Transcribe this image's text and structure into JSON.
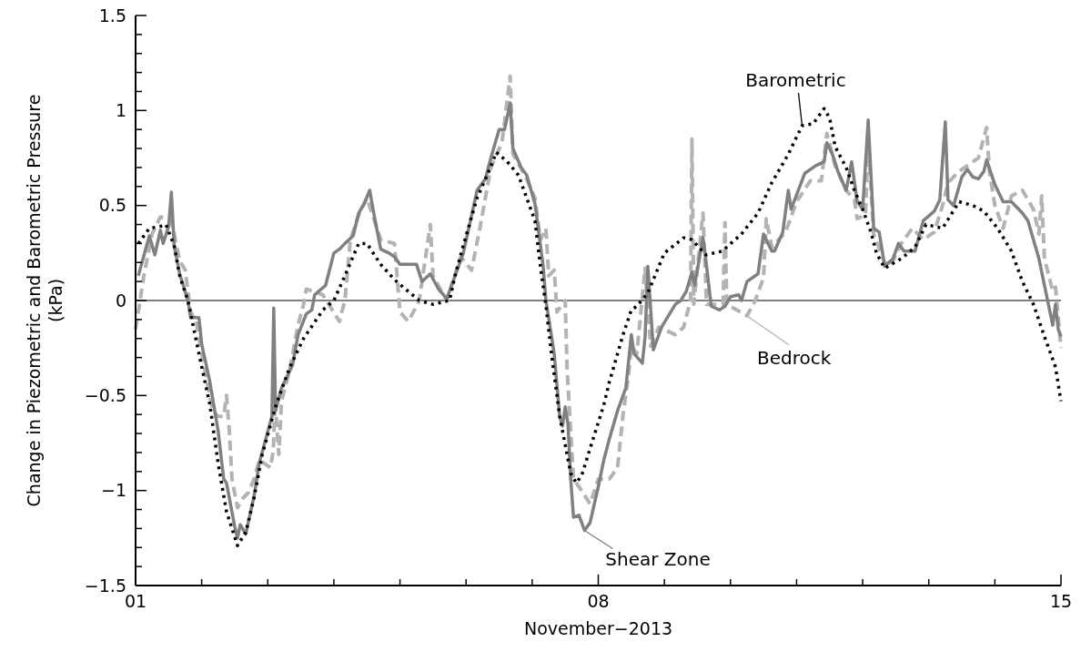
{
  "chart_data": {
    "type": "line",
    "xlabel": "November−2013",
    "ylabel": "Change in Piezometric and Barometric Pressure (kPa)",
    "xlim": [
      "2013-11-01",
      "2013-11-15"
    ],
    "xticks": [
      {
        "value": "2013-11-01",
        "label": "01"
      },
      {
        "value": "2013-11-02",
        "label": null
      },
      {
        "value": "2013-11-03",
        "label": null
      },
      {
        "value": "2013-11-04",
        "label": null
      },
      {
        "value": "2013-11-05",
        "label": null
      },
      {
        "value": "2013-11-06",
        "label": null
      },
      {
        "value": "2013-11-07",
        "label": null
      },
      {
        "value": "2013-11-08",
        "label": "08"
      },
      {
        "value": "2013-11-09",
        "label": null
      },
      {
        "value": "2013-11-10",
        "label": null
      },
      {
        "value": "2013-11-11",
        "label": null
      },
      {
        "value": "2013-11-12",
        "label": null
      },
      {
        "value": "2013-11-13",
        "label": null
      },
      {
        "value": "2013-11-14",
        "label": null
      },
      {
        "value": "2013-11-15",
        "label": "15"
      }
    ],
    "ylim": [
      -1.5,
      1.5
    ],
    "yticks": [
      {
        "value": -1.5,
        "label": "−1.5"
      },
      {
        "value": -1.4,
        "label": null
      },
      {
        "value": -1.3,
        "label": null
      },
      {
        "value": -1.2,
        "label": null
      },
      {
        "value": -1.1,
        "label": null
      },
      {
        "value": -1,
        "label": "−1"
      },
      {
        "value": -0.9,
        "label": null
      },
      {
        "value": -0.8,
        "label": null
      },
      {
        "value": -0.7,
        "label": null
      },
      {
        "value": -0.6,
        "label": null
      },
      {
        "value": -0.5,
        "label": "−0.5"
      },
      {
        "value": -0.4,
        "label": null
      },
      {
        "value": -0.3,
        "label": null
      },
      {
        "value": -0.2,
        "label": null
      },
      {
        "value": -0.1,
        "label": null
      },
      0,
      {
        "value": 0.1,
        "label": null
      },
      {
        "value": 0.2,
        "label": null
      },
      {
        "value": 0.3,
        "label": null
      },
      {
        "value": 0.4,
        "label": null
      },
      0.5,
      {
        "value": 0.6,
        "label": null
      },
      {
        "value": 0.7,
        "label": null
      },
      {
        "value": 0.8,
        "label": null
      },
      {
        "value": 0.9,
        "label": null
      },
      1,
      {
        "value": 1.1,
        "label": null
      },
      {
        "value": 1.2,
        "label": null
      },
      {
        "value": 1.3,
        "label": null
      },
      {
        "value": 1.4,
        "label": null
      },
      1.5
    ],
    "ref_lines": [
      {
        "axis": "y",
        "value": 0,
        "color": "#000000"
      }
    ],
    "legend": "bottom",
    "series": [
      {
        "name": "Bedrock",
        "color": "#b3b3b3",
        "line_style": "dashed",
        "x": [
          "2013-11-01T00:00",
          "2013-11-01T01:00",
          "2013-11-01T03:00",
          "2013-11-01T06:00",
          "2013-11-01T09:00",
          "2013-11-01T13:00",
          "2013-11-01T16:00",
          "2013-11-01T18:00",
          "2013-11-01T20:00",
          "2013-11-01T22:00",
          "2013-11-02T00:00",
          "2013-11-02T04:00",
          "2013-11-02T06:00",
          "2013-11-02T08:00",
          "2013-11-02T09:00",
          "2013-11-02T10:00",
          "2013-11-02T11:00",
          "2013-11-02T13:00",
          "2013-11-02T15:00",
          "2013-11-02T17:00",
          "2013-11-02T19:00",
          "2013-11-02T21:00",
          "2013-11-03T01:00",
          "2013-11-03T02:00",
          "2013-11-03T02:40",
          "2013-11-03T04:00",
          "2013-11-03T05:00",
          "2013-11-03T08:00",
          "2013-11-03T11:00",
          "2013-11-03T13:00",
          "2013-11-03T14:00",
          "2013-11-03T20:00",
          "2013-11-04T02:00",
          "2013-11-04T04:00",
          "2013-11-04T06:00",
          "2013-11-04T09:00",
          "2013-11-04T12:00",
          "2013-11-04T17:00",
          "2013-11-04T22:00",
          "2013-11-05T00:00",
          "2013-11-05T03:00",
          "2013-11-05T06:00",
          "2013-11-05T07:00",
          "2013-11-05T11:00",
          "2013-11-05T12:00",
          "2013-11-05T17:00",
          "2013-11-05T22:00",
          "2013-11-06T02:00",
          "2013-11-06T05:00",
          "2013-11-06T09:00",
          "2013-11-06T13:00",
          "2013-11-06T16:00",
          "2013-11-06T17:00",
          "2013-11-06T21:00",
          "2013-11-07T01:00",
          "2013-11-07T03:00",
          "2013-11-07T05:00",
          "2013-11-07T06:00",
          "2013-11-07T08:00",
          "2013-11-07T09:00",
          "2013-11-07T12:00",
          "2013-11-07T12:40",
          "2013-11-07T13:40",
          "2013-11-07T15:00",
          "2013-11-07T17:00",
          "2013-11-07T21:00",
          "2013-11-08T00:00",
          "2013-11-08T04:00",
          "2013-11-08T07:00",
          "2013-11-08T09:00",
          "2013-11-08T11:00",
          "2013-11-08T12:00",
          "2013-11-08T14:00",
          "2013-11-08T17:00",
          "2013-11-08T19:00",
          "2013-11-08T22:00",
          "2013-11-09T04:00",
          "2013-11-09T07:00",
          "2013-11-09T09:30",
          "2013-11-09T10:00",
          "2013-11-09T10:40",
          "2013-11-09T14:00",
          "2013-11-09T15:20",
          "2013-11-09T21:20",
          "2013-11-09T22:00",
          "2013-11-09T22:40",
          "2013-11-10T06:00",
          "2013-11-10T09:00",
          "2013-11-10T12:00",
          "2013-11-10T13:00",
          "2013-11-10T15:00",
          "2013-11-10T20:00",
          "2013-11-11T00:00",
          "2013-11-11T05:00",
          "2013-11-11T09:00",
          "2013-11-11T11:00",
          "2013-11-11T14:00",
          "2013-11-11T18:00",
          "2013-11-11T21:00",
          "2013-11-11T22:00",
          "2013-11-12T01:00",
          "2013-11-12T02:00",
          "2013-11-12T04:00",
          "2013-11-12T08:00",
          "2013-11-12T10:00",
          "2013-11-12T14:00",
          "2013-11-12T18:00",
          "2013-11-12T22:00",
          "2013-11-13T02:00",
          "2013-11-13T05:00",
          "2013-11-13T07:00",
          "2013-11-13T11:00",
          "2013-11-13T15:00",
          "2013-11-13T18:00",
          "2013-11-13T21:00",
          "2013-11-13T22:00",
          "2013-11-14T00:00",
          "2013-11-14T03:00",
          "2013-11-14T06:00",
          "2013-11-14T10:00",
          "2013-11-14T14:00",
          "2013-11-14T16:00",
          "2013-11-14T17:00",
          "2013-11-14T18:00",
          "2013-11-14T21:00",
          "2013-11-14T22:00",
          "2013-11-15T00:00"
        ],
        "values": [
          -0.15,
          -0.06,
          0.13,
          0.35,
          0.44,
          0.42,
          0.21,
          0.16,
          -0.06,
          -0.11,
          -0.28,
          -0.58,
          -0.61,
          -0.61,
          -0.5,
          -0.68,
          -0.94,
          -1.09,
          -1.04,
          -1.01,
          -0.94,
          -0.84,
          -0.88,
          -0.79,
          -0.53,
          -0.81,
          -0.53,
          -0.36,
          -0.13,
          -0.02,
          0.06,
          0.03,
          -0.11,
          0,
          0.32,
          0.45,
          0.54,
          0.32,
          0.3,
          -0.06,
          -0.11,
          -0.03,
          0,
          0.4,
          0.13,
          0,
          0.23,
          0.16,
          0.38,
          0.7,
          0.83,
          1.18,
          0.77,
          0.67,
          0.54,
          0.32,
          0.38,
          0.13,
          0.16,
          -0.06,
          0,
          -0.36,
          -0.61,
          -0.94,
          -0.98,
          -1.07,
          -0.94,
          -0.94,
          -0.88,
          -0.6,
          -0.39,
          -0.24,
          -0.28,
          0.17,
          -0.24,
          -0.14,
          -0.18,
          -0.14,
          0,
          0.85,
          -0.02,
          0.46,
          -0.02,
          -0.02,
          0.41,
          -0.02,
          -0.08,
          0,
          0.12,
          0.43,
          0.28,
          0.36,
          0.52,
          0.63,
          0.63,
          0.88,
          0.71,
          0.58,
          0.53,
          0.43,
          0.45,
          0.83,
          0.35,
          0.2,
          0.18,
          0.3,
          0.38,
          0.32,
          0.36,
          0.5,
          0.62,
          0.68,
          0.72,
          0.75,
          0.91,
          0.68,
          0.5,
          0.38,
          0.55,
          0.58,
          0.48,
          0.35,
          0.55,
          0.22,
          0.05,
          0.07,
          -0.25
        ]
      },
      {
        "name": "Shear Zone",
        "color": "#808080",
        "line_style": "solid",
        "x": [
          "2013-11-01T01:00",
          "2013-11-01T05:00",
          "2013-11-01T07:00",
          "2013-11-01T09:00",
          "2013-11-01T10:00",
          "2013-11-01T12:00",
          "2013-11-01T13:00",
          "2013-11-01T14:00",
          "2013-11-01T16:00",
          "2013-11-01T19:00",
          "2013-11-01T20:00",
          "2013-11-01T23:00",
          "2013-11-02T00:00",
          "2013-11-02T03:00",
          "2013-11-02T06:00",
          "2013-11-02T08:00",
          "2013-11-02T09:00",
          "2013-11-02T12:00",
          "2013-11-02T13:00",
          "2013-11-02T14:00",
          "2013-11-02T16:00",
          "2013-11-02T19:00",
          "2013-11-02T21:00",
          "2013-11-03T00:00",
          "2013-11-03T01:30",
          "2013-11-03T02:10",
          "2013-11-03T02:50",
          "2013-11-03T05:00",
          "2013-11-03T09:00",
          "2013-11-03T11:00",
          "2013-11-03T14:00",
          "2013-11-03T16:00",
          "2013-11-03T17:00",
          "2013-11-03T21:00",
          "2013-11-04T00:00",
          "2013-11-04T02:00",
          "2013-11-04T04:00",
          "2013-11-04T07:00",
          "2013-11-04T09:00",
          "2013-11-04T11:00",
          "2013-11-04T13:00",
          "2013-11-04T15:00",
          "2013-11-04T17:00",
          "2013-11-04T20:00",
          "2013-11-04T22:00",
          "2013-11-05T00:00",
          "2013-11-05T03:00",
          "2013-11-05T06:00",
          "2013-11-05T08:00",
          "2013-11-05T11:00",
          "2013-11-05T14:00",
          "2013-11-05T17:00",
          "2013-11-05T20:00",
          "2013-11-05T23:00",
          "2013-11-06T04:00",
          "2013-11-06T07:00",
          "2013-11-06T09:00",
          "2013-11-06T12:00",
          "2013-11-06T14:00",
          "2013-11-06T16:00",
          "2013-11-06T17:00",
          "2013-11-06T20:00",
          "2013-11-06T22:00",
          "2013-11-07T01:00",
          "2013-11-07T03:00",
          "2013-11-07T04:00",
          "2013-11-07T05:00",
          "2013-11-07T08:00",
          "2013-11-07T10:00",
          "2013-11-07T11:00",
          "2013-11-07T12:00",
          "2013-11-07T13:00",
          "2013-11-07T14:00",
          "2013-11-07T15:00",
          "2013-11-07T17:00",
          "2013-11-07T18:00",
          "2013-11-07T19:00",
          "2013-11-07T21:00",
          "2013-11-08T00:00",
          "2013-11-08T02:00",
          "2013-11-08T04:00",
          "2013-11-08T07:00",
          "2013-11-08T10:00",
          "2013-11-08T12:00",
          "2013-11-08T13:00",
          "2013-11-08T16:00",
          "2013-11-08T17:00",
          "2013-11-08T18:00",
          "2013-11-08T20:00",
          "2013-11-08T23:00",
          "2013-11-09T04:00",
          "2013-11-09T06:00",
          "2013-11-09T08:00",
          "2013-11-09T10:00",
          "2013-11-09T11:00",
          "2013-11-09T14:00",
          "2013-11-09T15:00",
          "2013-11-09T17:00",
          "2013-11-09T20:00",
          "2013-11-09T22:00",
          "2013-11-10T00:00",
          "2013-11-10T03:00",
          "2013-11-10T04:00",
          "2013-11-10T06:00",
          "2013-11-10T10:00",
          "2013-11-10T12:00",
          "2013-11-10T15:00",
          "2013-11-10T16:00",
          "2013-11-10T19:00",
          "2013-11-10T21:00",
          "2013-11-10T22:00",
          "2013-11-11T03:00",
          "2013-11-11T07:00",
          "2013-11-11T10:00",
          "2013-11-11T11:00",
          "2013-11-11T13:00",
          "2013-11-11T15:00",
          "2013-11-11T18:00",
          "2013-11-11T20:00",
          "2013-11-11T22:00",
          "2013-11-12T00:00",
          "2013-11-12T02:00",
          "2013-11-12T04:00",
          "2013-11-12T06:00",
          "2013-11-12T08:00",
          "2013-11-12T11:00",
          "2013-11-12T13:00",
          "2013-11-12T15:00",
          "2013-11-12T19:00",
          "2013-11-12T22:00",
          "2013-11-13T02:00",
          "2013-11-13T04:00",
          "2013-11-13T06:00",
          "2013-11-13T07:00",
          "2013-11-13T09:00",
          "2013-11-13T12:00",
          "2013-11-13T14:00",
          "2013-11-13T16:00",
          "2013-11-13T18:00",
          "2013-11-13T20:00",
          "2013-11-13T21:00",
          "2013-11-14T00:00",
          "2013-11-14T03:00",
          "2013-11-14T06:00",
          "2013-11-14T10:00",
          "2013-11-14T12:00",
          "2013-11-14T16:00",
          "2013-11-14T19:00",
          "2013-11-14T21:00",
          "2013-11-14T22:00",
          "2013-11-14T23:00",
          "2013-11-15T00:00"
        ],
        "values": [
          0.13,
          0.34,
          0.24,
          0.37,
          0.3,
          0.39,
          0.57,
          0.29,
          0.14,
          0,
          -0.09,
          -0.09,
          -0.23,
          -0.43,
          -0.69,
          -0.94,
          -0.96,
          -1.19,
          -1.25,
          -1.18,
          -1.23,
          -1.03,
          -0.85,
          -0.69,
          -0.61,
          -0.04,
          -0.58,
          -0.46,
          -0.34,
          -0.18,
          -0.07,
          -0.05,
          0.03,
          0.08,
          0.25,
          0.27,
          0.3,
          0.34,
          0.46,
          0.51,
          0.58,
          0.42,
          0.27,
          0.25,
          0.23,
          0.19,
          0.19,
          0.19,
          0.1,
          0.14,
          0.06,
          0.01,
          0.13,
          0.25,
          0.58,
          0.64,
          0.75,
          0.9,
          0.9,
          1.04,
          0.8,
          0.7,
          0.66,
          0.51,
          0.29,
          0.18,
          0,
          -0.28,
          -0.61,
          -0.66,
          -0.56,
          -0.65,
          -0.94,
          -1.14,
          -1.13,
          -1.17,
          -1.21,
          -1.17,
          -0.98,
          -0.84,
          -0.73,
          -0.58,
          -0.46,
          -0.18,
          -0.28,
          -0.33,
          -0.19,
          0.18,
          -0.26,
          -0.14,
          -0.02,
          0,
          0.05,
          0.15,
          0.08,
          0.33,
          0.22,
          -0.03,
          -0.05,
          -0.03,
          0.02,
          0.03,
          0,
          0.1,
          0.14,
          0.35,
          0.26,
          0.26,
          0.36,
          0.58,
          0.48,
          0.67,
          0.71,
          0.73,
          0.83,
          0.77,
          0.68,
          0.58,
          0.73,
          0.52,
          0.48,
          0.95,
          0.38,
          0.36,
          0.18,
          0.22,
          0.3,
          0.26,
          0.26,
          0.42,
          0.47,
          0.53,
          0.94,
          0.53,
          0.5,
          0.65,
          0.69,
          0.65,
          0.64,
          0.68,
          0.74,
          0.61,
          0.52,
          0.52,
          0.46,
          0.42,
          0.22,
          0.01,
          -0.13,
          -0.02,
          -0.15,
          -0.19
        ]
      },
      {
        "name": "Barometric",
        "color": "#000000",
        "line_style": "dotted",
        "x": [
          "2013-11-01T01:00",
          "2013-11-01T05:00",
          "2013-11-01T09:00",
          "2013-11-01T11:00",
          "2013-11-01T14:00",
          "2013-11-01T16:00",
          "2013-11-01T19:00",
          "2013-11-01T23:00",
          "2013-11-02T03:00",
          "2013-11-02T06:00",
          "2013-11-02T09:00",
          "2013-11-02T13:00",
          "2013-11-02T16:00",
          "2013-11-02T19:00",
          "2013-11-02T22:00",
          "2013-11-03T03:00",
          "2013-11-03T08:00",
          "2013-11-03T13:00",
          "2013-11-03T20:00",
          "2013-11-04T00:00",
          "2013-11-04T04:00",
          "2013-11-04T09:00",
          "2013-11-04T12:00",
          "2013-11-04T17:00",
          "2013-11-04T22:00",
          "2013-11-05T02:00",
          "2013-11-05T07:00",
          "2013-11-05T12:00",
          "2013-11-05T18:00",
          "2013-11-05T20:00",
          "2013-11-05T23:00",
          "2013-11-06T04:00",
          "2013-11-06T08:00",
          "2013-11-06T11:00",
          "2013-11-06T15:00",
          "2013-11-06T19:00",
          "2013-11-06T22:00",
          "2013-11-07T01:00",
          "2013-11-07T03:00",
          "2013-11-07T05:00",
          "2013-11-07T07:00",
          "2013-11-07T10:00",
          "2013-11-07T14:00",
          "2013-11-07T16:00",
          "2013-11-07T18:00",
          "2013-11-07T21:00",
          "2013-11-08T02:00",
          "2013-11-08T04:00",
          "2013-11-08T09:00",
          "2013-11-08T12:00",
          "2013-11-08T14:00",
          "2013-11-08T18:00",
          "2013-11-09T00:00",
          "2013-11-09T07:00",
          "2013-11-09T10:00",
          "2013-11-09T15:00",
          "2013-11-09T21:00",
          "2013-11-10T04:00",
          "2013-11-10T10:00",
          "2013-11-10T15:00",
          "2013-11-10T21:00",
          "2013-11-11T02:00",
          "2013-11-11T06:00",
          "2013-11-11T10:00",
          "2013-11-11T12:00",
          "2013-11-11T14:00",
          "2013-11-11T18:00",
          "2013-11-11T21:00",
          "2013-11-12T00:00",
          "2013-11-12T03:00",
          "2013-11-12T05:00",
          "2013-11-12T08:00",
          "2013-11-12T14:00",
          "2013-11-12T19:00",
          "2013-11-12T23:00",
          "2013-11-13T05:00",
          "2013-11-13T11:00",
          "2013-11-13T16:00",
          "2013-11-13T20:00",
          "2013-11-14T01:00",
          "2013-11-14T06:00",
          "2013-11-14T10:00",
          "2013-11-14T14:00",
          "2013-11-14T18:00",
          "2013-11-14T22:00",
          "2013-11-15T00:00"
        ],
        "values": [
          0.3,
          0.38,
          0.39,
          0.4,
          0.29,
          0.13,
          0,
          -0.28,
          -0.55,
          -0.86,
          -1.11,
          -1.29,
          -1.22,
          -1.04,
          -0.81,
          -0.55,
          -0.35,
          -0.2,
          -0.05,
          0,
          0.13,
          0.3,
          0.3,
          0.19,
          0.11,
          0.06,
          0,
          -0.02,
          0,
          0.13,
          0.29,
          0.54,
          0.67,
          0.78,
          0.73,
          0.66,
          0.54,
          0.42,
          0.18,
          -0.03,
          -0.28,
          -0.61,
          -0.91,
          -0.96,
          -0.92,
          -0.78,
          -0.55,
          -0.43,
          -0.18,
          -0.05,
          -0.03,
          0.04,
          0.25,
          0.33,
          0.32,
          0.24,
          0.26,
          0.35,
          0.46,
          0.62,
          0.77,
          0.92,
          0.93,
          1.01,
          0.96,
          0.81,
          0.7,
          0.58,
          0.48,
          0.36,
          0.25,
          0.17,
          0.22,
          0.28,
          0.4,
          0.38,
          0.52,
          0.5,
          0.47,
          0.38,
          0.26,
          0.1,
          -0.02,
          -0.19,
          -0.35,
          -0.53
        ]
      }
    ]
  }
}
